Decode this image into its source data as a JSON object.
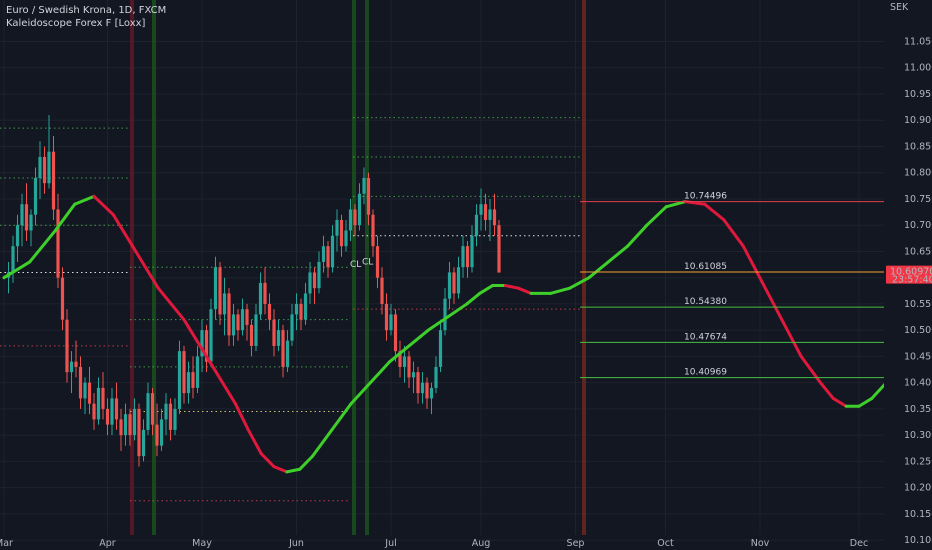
{
  "legend": {
    "symbol_line": "Euro / Swedish Krona, 1D, FXCM",
    "indicator_line": "Kaleidoscope Forex F [Loxx]"
  },
  "chart_data": {
    "type": "candlestick",
    "title": "Euro / Swedish Krona, 1D, FXCM",
    "currency": "SEK",
    "x_ticks": [
      "Mar",
      "Apr",
      "May",
      "Jun",
      "Jul",
      "Aug",
      "Sep",
      "Oct",
      "Nov",
      "Dec"
    ],
    "y_ticks": [
      "11.05000",
      "11.00000",
      "10.95000",
      "10.90000",
      "10.85000",
      "10.80000",
      "10.75000",
      "10.70000",
      "10.65000",
      "10.60000",
      "10.55000",
      "10.50000",
      "10.45000",
      "10.40000",
      "10.35000",
      "10.30000",
      "10.25000",
      "10.20000",
      "10.15000",
      "10.10000"
    ],
    "ylim": [
      10.085,
      11.11
    ],
    "grid": true,
    "current_price": {
      "value": "10.60970",
      "countdown": "23:57:40"
    },
    "levels": [
      {
        "label": "10.74496",
        "value": 10.74496,
        "color": "#e04050"
      },
      {
        "label": "10.61085",
        "value": 10.61085,
        "color": "#f0a030"
      },
      {
        "label": "10.54380",
        "value": 10.5438,
        "color": "#48c040"
      },
      {
        "label": "10.47674",
        "value": 10.47674,
        "color": "#48c040"
      },
      {
        "label": "10.40969",
        "value": 10.40969,
        "color": "#48c040"
      }
    ],
    "annotations": [
      "CL",
      "CL"
    ],
    "indicator_curve": [
      [
        0,
        10.6
      ],
      [
        4,
        10.63
      ],
      [
        8,
        10.69
      ],
      [
        11,
        10.74
      ],
      [
        14,
        10.755
      ],
      [
        17,
        10.72
      ],
      [
        20,
        10.66
      ],
      [
        24,
        10.58
      ],
      [
        28,
        10.52
      ],
      [
        32,
        10.44
      ],
      [
        36,
        10.36
      ],
      [
        38,
        10.31
      ],
      [
        40,
        10.265
      ],
      [
        42,
        10.24
      ],
      [
        44,
        10.23
      ],
      [
        46,
        10.235
      ],
      [
        48,
        10.26
      ],
      [
        51,
        10.31
      ],
      [
        54,
        10.36
      ],
      [
        57,
        10.4
      ],
      [
        60,
        10.44
      ],
      [
        63,
        10.47
      ],
      [
        66,
        10.5
      ],
      [
        69,
        10.525
      ],
      [
        72,
        10.55
      ],
      [
        74,
        10.57
      ],
      [
        76,
        10.585
      ],
      [
        78,
        10.585
      ],
      [
        80,
        10.58
      ],
      [
        82,
        10.57
      ],
      [
        85,
        10.57
      ],
      [
        88,
        10.58
      ],
      [
        91,
        10.6
      ],
      [
        94,
        10.63
      ],
      [
        97,
        10.66
      ],
      [
        100,
        10.7
      ],
      [
        103,
        10.735
      ],
      [
        106,
        10.745
      ],
      [
        109,
        10.74
      ],
      [
        112,
        10.71
      ],
      [
        115,
        10.66
      ],
      [
        118,
        10.59
      ],
      [
        121,
        10.52
      ],
      [
        124,
        10.45
      ],
      [
        127,
        10.4
      ],
      [
        129,
        10.37
      ],
      [
        131,
        10.355
      ],
      [
        133,
        10.355
      ],
      [
        135,
        10.37
      ],
      [
        138,
        10.41
      ],
      [
        141,
        10.47
      ],
      [
        144,
        10.53
      ],
      [
        147,
        10.58
      ],
      [
        149,
        10.61
      ],
      [
        151,
        10.63
      ],
      [
        153,
        10.645
      ],
      [
        155,
        10.67
      ]
    ],
    "candles": [
      [
        10.6,
        10.63,
        10.57,
        10.61
      ],
      [
        10.61,
        10.68,
        10.59,
        10.66
      ],
      [
        10.66,
        10.72,
        10.63,
        10.7
      ],
      [
        10.7,
        10.76,
        10.66,
        10.74
      ],
      [
        10.74,
        10.78,
        10.67,
        10.69
      ],
      [
        10.69,
        10.73,
        10.66,
        10.72
      ],
      [
        10.72,
        10.81,
        10.7,
        10.79
      ],
      [
        10.79,
        10.86,
        10.75,
        10.83
      ],
      [
        10.83,
        10.85,
        10.76,
        10.78
      ],
      [
        10.78,
        10.91,
        10.77,
        10.84
      ],
      [
        10.84,
        10.87,
        10.71,
        10.73
      ],
      [
        10.73,
        10.76,
        10.58,
        10.6
      ],
      [
        10.6,
        10.62,
        10.5,
        10.52
      ],
      [
        10.52,
        10.54,
        10.4,
        10.42
      ],
      [
        10.42,
        10.46,
        10.38,
        10.44
      ],
      [
        10.44,
        10.48,
        10.41,
        10.43
      ],
      [
        10.43,
        10.45,
        10.35,
        10.37
      ],
      [
        10.37,
        10.41,
        10.34,
        10.4
      ],
      [
        10.4,
        10.43,
        10.34,
        10.36
      ],
      [
        10.36,
        10.38,
        10.31,
        10.33
      ],
      [
        10.33,
        10.41,
        10.32,
        10.39
      ],
      [
        10.39,
        10.42,
        10.33,
        10.35
      ],
      [
        10.35,
        10.37,
        10.3,
        10.32
      ],
      [
        10.32,
        10.39,
        10.3,
        10.37
      ],
      [
        10.37,
        10.4,
        10.31,
        10.33
      ],
      [
        10.33,
        10.35,
        10.27,
        10.3
      ],
      [
        10.3,
        10.36,
        10.28,
        10.34
      ],
      [
        10.34,
        10.35,
        10.28,
        10.3
      ],
      [
        10.3,
        10.37,
        10.29,
        10.35
      ],
      [
        10.35,
        10.36,
        10.24,
        10.26
      ],
      [
        10.26,
        10.33,
        10.25,
        10.31
      ],
      [
        10.31,
        10.4,
        10.3,
        10.38
      ],
      [
        10.38,
        10.39,
        10.3,
        10.32
      ],
      [
        10.32,
        10.36,
        10.26,
        10.28
      ],
      [
        10.28,
        10.35,
        10.27,
        10.33
      ],
      [
        10.33,
        10.38,
        10.3,
        10.36
      ],
      [
        10.36,
        10.37,
        10.29,
        10.31
      ],
      [
        10.31,
        10.37,
        10.3,
        10.35
      ],
      [
        10.35,
        10.48,
        10.34,
        10.46
      ],
      [
        10.46,
        10.47,
        10.36,
        10.38
      ],
      [
        10.38,
        10.44,
        10.36,
        10.42
      ],
      [
        10.42,
        10.45,
        10.37,
        10.39
      ],
      [
        10.39,
        10.47,
        10.38,
        10.45
      ],
      [
        10.45,
        10.52,
        10.42,
        10.5
      ],
      [
        10.5,
        10.51,
        10.42,
        10.44
      ],
      [
        10.44,
        10.56,
        10.43,
        10.54
      ],
      [
        10.54,
        10.64,
        10.52,
        10.62
      ],
      [
        10.62,
        10.63,
        10.51,
        10.53
      ],
      [
        10.53,
        10.6,
        10.49,
        10.57
      ],
      [
        10.57,
        10.58,
        10.47,
        10.49
      ],
      [
        10.49,
        10.55,
        10.47,
        10.53
      ],
      [
        10.53,
        10.54,
        10.48,
        10.5
      ],
      [
        10.5,
        10.56,
        10.49,
        10.54
      ],
      [
        10.54,
        10.55,
        10.48,
        10.51
      ],
      [
        10.51,
        10.52,
        10.45,
        10.47
      ],
      [
        10.47,
        10.55,
        10.46,
        10.53
      ],
      [
        10.53,
        10.61,
        10.52,
        10.59
      ],
      [
        10.59,
        10.62,
        10.53,
        10.55
      ],
      [
        10.55,
        10.57,
        10.5,
        10.52
      ],
      [
        10.52,
        10.54,
        10.45,
        10.47
      ],
      [
        10.47,
        10.52,
        10.46,
        10.5
      ],
      [
        10.5,
        10.51,
        10.41,
        10.43
      ],
      [
        10.43,
        10.5,
        10.42,
        10.48
      ],
      [
        10.48,
        10.55,
        10.47,
        10.53
      ],
      [
        10.53,
        10.57,
        10.5,
        10.55
      ],
      [
        10.55,
        10.56,
        10.5,
        10.52
      ],
      [
        10.52,
        10.59,
        10.51,
        10.57
      ],
      [
        10.57,
        10.63,
        10.55,
        10.61
      ],
      [
        10.61,
        10.62,
        10.55,
        10.58
      ],
      [
        10.58,
        10.65,
        10.57,
        10.63
      ],
      [
        10.63,
        10.68,
        10.61,
        10.66
      ],
      [
        10.66,
        10.67,
        10.6,
        10.62
      ],
      [
        10.62,
        10.7,
        10.61,
        10.68
      ],
      [
        10.68,
        10.73,
        10.65,
        10.71
      ],
      [
        10.71,
        10.72,
        10.64,
        10.66
      ],
      [
        10.66,
        10.71,
        10.65,
        10.69
      ],
      [
        10.69,
        10.75,
        10.67,
        10.73
      ],
      [
        10.73,
        10.74,
        10.68,
        10.7
      ],
      [
        10.7,
        10.78,
        10.69,
        10.76
      ],
      [
        10.76,
        10.81,
        10.74,
        10.79
      ],
      [
        10.79,
        10.8,
        10.7,
        10.72
      ],
      [
        10.72,
        10.73,
        10.64,
        10.66
      ],
      [
        10.66,
        10.68,
        10.58,
        10.6
      ],
      [
        10.6,
        10.62,
        10.53,
        10.55
      ],
      [
        10.55,
        10.57,
        10.48,
        10.5
      ],
      [
        10.5,
        10.55,
        10.49,
        10.53
      ],
      [
        10.53,
        10.54,
        10.44,
        10.46
      ],
      [
        10.46,
        10.48,
        10.41,
        10.43
      ],
      [
        10.43,
        10.47,
        10.4,
        10.45
      ],
      [
        10.45,
        10.46,
        10.39,
        10.41
      ],
      [
        10.41,
        10.44,
        10.38,
        10.42
      ],
      [
        10.42,
        10.43,
        10.36,
        10.38
      ],
      [
        10.38,
        10.42,
        10.36,
        10.4
      ],
      [
        10.4,
        10.41,
        10.35,
        10.37
      ],
      [
        10.37,
        10.4,
        10.34,
        10.39
      ],
      [
        10.39,
        10.45,
        10.38,
        10.43
      ],
      [
        10.43,
        10.52,
        10.42,
        10.5
      ],
      [
        10.5,
        10.58,
        10.49,
        10.56
      ],
      [
        10.56,
        10.63,
        10.54,
        10.61
      ],
      [
        10.61,
        10.62,
        10.55,
        10.57
      ],
      [
        10.57,
        10.64,
        10.56,
        10.62
      ],
      [
        10.62,
        10.68,
        10.6,
        10.66
      ],
      [
        10.66,
        10.67,
        10.6,
        10.62
      ],
      [
        10.62,
        10.7,
        10.61,
        10.68
      ],
      [
        10.68,
        10.74,
        10.66,
        10.72
      ],
      [
        10.72,
        10.77,
        10.69,
        10.74
      ],
      [
        10.74,
        10.76,
        10.69,
        10.71
      ],
      [
        10.71,
        10.75,
        10.67,
        10.73
      ],
      [
        10.73,
        10.76,
        10.68,
        10.7
      ],
      [
        10.7,
        10.71,
        10.61,
        10.6097
      ]
    ],
    "x_date_index": {
      "Mar": 0,
      "Apr": 23,
      "May": 44,
      "Jun": 65,
      "Jul": 86,
      "Aug": 106,
      "Sep": 127,
      "Oct": 147,
      "Nov": 168,
      "Dec": 190
    },
    "indicator_x_index_scale": 0.7
  },
  "colors": {
    "background": "#131722",
    "bull": "#26a69a",
    "bear": "#ef5350",
    "uptrend": "#3ecf2a",
    "downtrend": "#e0193c",
    "grid": "#1e222d",
    "price_tag": "#f23645"
  }
}
